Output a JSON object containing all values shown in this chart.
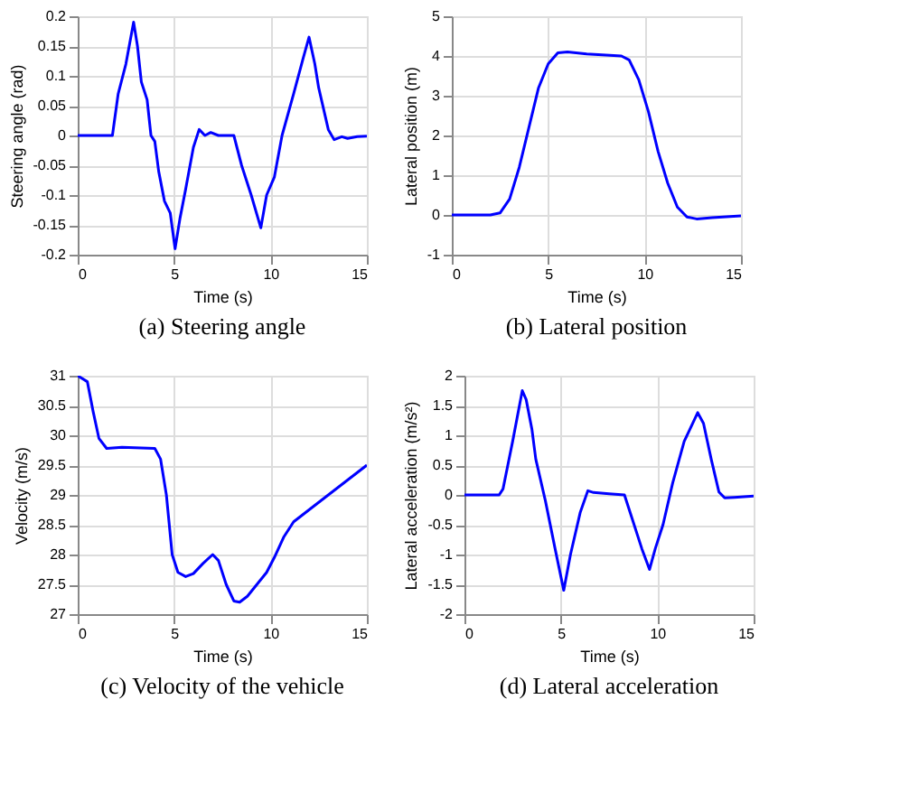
{
  "chart_data": [
    {
      "type": "line",
      "xlabel": "Time (s)",
      "ylabel": "Steering angle (rad)",
      "annotations": [
        "(a)  Steering angle"
      ],
      "xlim": [
        0,
        15
      ],
      "xticks": [
        0,
        5,
        10,
        15
      ],
      "ylim": [
        -0.2,
        0.2
      ],
      "yticks": [
        -0.2,
        -0.15,
        -0.1,
        -0.05,
        0,
        0.05,
        0.1,
        0.15,
        0.2
      ],
      "grid": true,
      "line_style": "solid",
      "marker": "none",
      "x": [
        0,
        1.8,
        2.1,
        2.5,
        2.9,
        3.1,
        3.3,
        3.6,
        3.8,
        4.0,
        4.2,
        4.5,
        4.8,
        5.05,
        5.3,
        5.6,
        6.0,
        6.3,
        6.6,
        6.9,
        7.3,
        8.1,
        8.5,
        9.0,
        9.5,
        9.8,
        10.2,
        10.6,
        11.2,
        11.7,
        12.0,
        12.3,
        12.5,
        13.0,
        13.3,
        13.7,
        14.0,
        14.5,
        15
      ],
      "series": [
        {
          "color": "#0000ff",
          "values": [
            0,
            0,
            0.07,
            0.12,
            0.19,
            0.15,
            0.09,
            0.06,
            0,
            -0.01,
            -0.06,
            -0.11,
            -0.13,
            -0.19,
            -0.14,
            -0.09,
            -0.02,
            0.01,
            0,
            0.005,
            0,
            0,
            -0.05,
            -0.1,
            -0.155,
            -0.1,
            -0.07,
            0,
            0.07,
            0.13,
            0.165,
            0.12,
            0.08,
            0.01,
            -0.007,
            -0.002,
            -0.005,
            -0.002,
            -0.001
          ]
        }
      ]
    },
    {
      "type": "line",
      "xlabel": "Time (s)",
      "ylabel": "Lateral position (m)",
      "annotations": [
        "(b)  Lateral position"
      ],
      "xlim": [
        0,
        15
      ],
      "xticks": [
        0,
        5,
        10,
        15
      ],
      "ylim": [
        -1,
        5
      ],
      "yticks": [
        -1,
        0,
        1,
        2,
        3,
        4,
        5
      ],
      "grid": true,
      "line_style": "solid",
      "marker": "none",
      "x": [
        0,
        2,
        2.5,
        3,
        3.5,
        4,
        4.5,
        5,
        5.5,
        6,
        7,
        8,
        8.8,
        9.2,
        9.7,
        10.2,
        10.7,
        11.2,
        11.7,
        12.2,
        12.7,
        13.5,
        15
      ],
      "series": [
        {
          "color": "#0000ff",
          "values": [
            0,
            0,
            0.05,
            0.4,
            1.2,
            2.2,
            3.2,
            3.8,
            4.08,
            4.1,
            4.05,
            4.02,
            4.0,
            3.9,
            3.4,
            2.6,
            1.6,
            0.8,
            0.2,
            -0.05,
            -0.1,
            -0.07,
            -0.02
          ]
        }
      ]
    },
    {
      "type": "line",
      "xlabel": "Time (s)",
      "ylabel": "Velocity (m/s)",
      "annotations": [
        "(c)  Velocity of the vehicle"
      ],
      "xlim": [
        0,
        15
      ],
      "xticks": [
        0,
        5,
        10,
        15
      ],
      "ylim": [
        27,
        31
      ],
      "yticks": [
        27,
        27.5,
        28,
        28.5,
        29,
        29.5,
        30,
        30.5,
        31
      ],
      "grid": true,
      "line_style": "solid",
      "marker": "none",
      "x": [
        0,
        0.5,
        0.8,
        1.1,
        1.5,
        2.3,
        4.0,
        4.3,
        4.6,
        4.9,
        5.2,
        5.6,
        6.0,
        6.5,
        7.0,
        7.3,
        7.7,
        8.1,
        8.4,
        8.8,
        9.3,
        9.8,
        10.2,
        10.7,
        11.2,
        12,
        13,
        14,
        15
      ],
      "series": [
        {
          "color": "#0000ff",
          "values": [
            31,
            30.9,
            30.4,
            29.95,
            29.78,
            29.8,
            29.78,
            29.6,
            29.0,
            28.0,
            27.7,
            27.63,
            27.68,
            27.85,
            28.0,
            27.9,
            27.5,
            27.22,
            27.2,
            27.3,
            27.5,
            27.7,
            27.95,
            28.3,
            28.55,
            28.75,
            29.0,
            29.25,
            29.5
          ]
        }
      ]
    },
    {
      "type": "line",
      "xlabel": "Time (s)",
      "ylabel": "Lateral acceleration (m/s²)",
      "annotations": [
        "(d)  Lateral acceleration"
      ],
      "xlim": [
        0,
        15
      ],
      "xticks": [
        0,
        5,
        10,
        15
      ],
      "ylim": [
        -2,
        2
      ],
      "yticks": [
        -2,
        -1.5,
        -1,
        -0.5,
        0,
        0.5,
        1,
        1.5,
        2
      ],
      "grid": true,
      "line_style": "solid",
      "marker": "none",
      "x": [
        0,
        1.8,
        2.0,
        2.5,
        3.0,
        3.2,
        3.5,
        3.7,
        4.2,
        4.7,
        5.15,
        5.5,
        6.0,
        6.4,
        6.7,
        7.5,
        8.3,
        8.6,
        9.2,
        9.6,
        9.9,
        10.3,
        10.8,
        11.4,
        12.1,
        12.4,
        12.8,
        13.2,
        13.5,
        14,
        15
      ],
      "series": [
        {
          "color": "#0000ff",
          "values": [
            0,
            0,
            0.1,
            0.9,
            1.75,
            1.6,
            1.1,
            0.6,
            -0.1,
            -0.9,
            -1.6,
            -1.0,
            -0.3,
            0.07,
            0.04,
            0.02,
            0,
            -0.3,
            -0.9,
            -1.25,
            -0.9,
            -0.5,
            0.2,
            0.9,
            1.38,
            1.2,
            0.6,
            0.05,
            -0.05,
            -0.04,
            -0.02
          ]
        }
      ]
    }
  ]
}
